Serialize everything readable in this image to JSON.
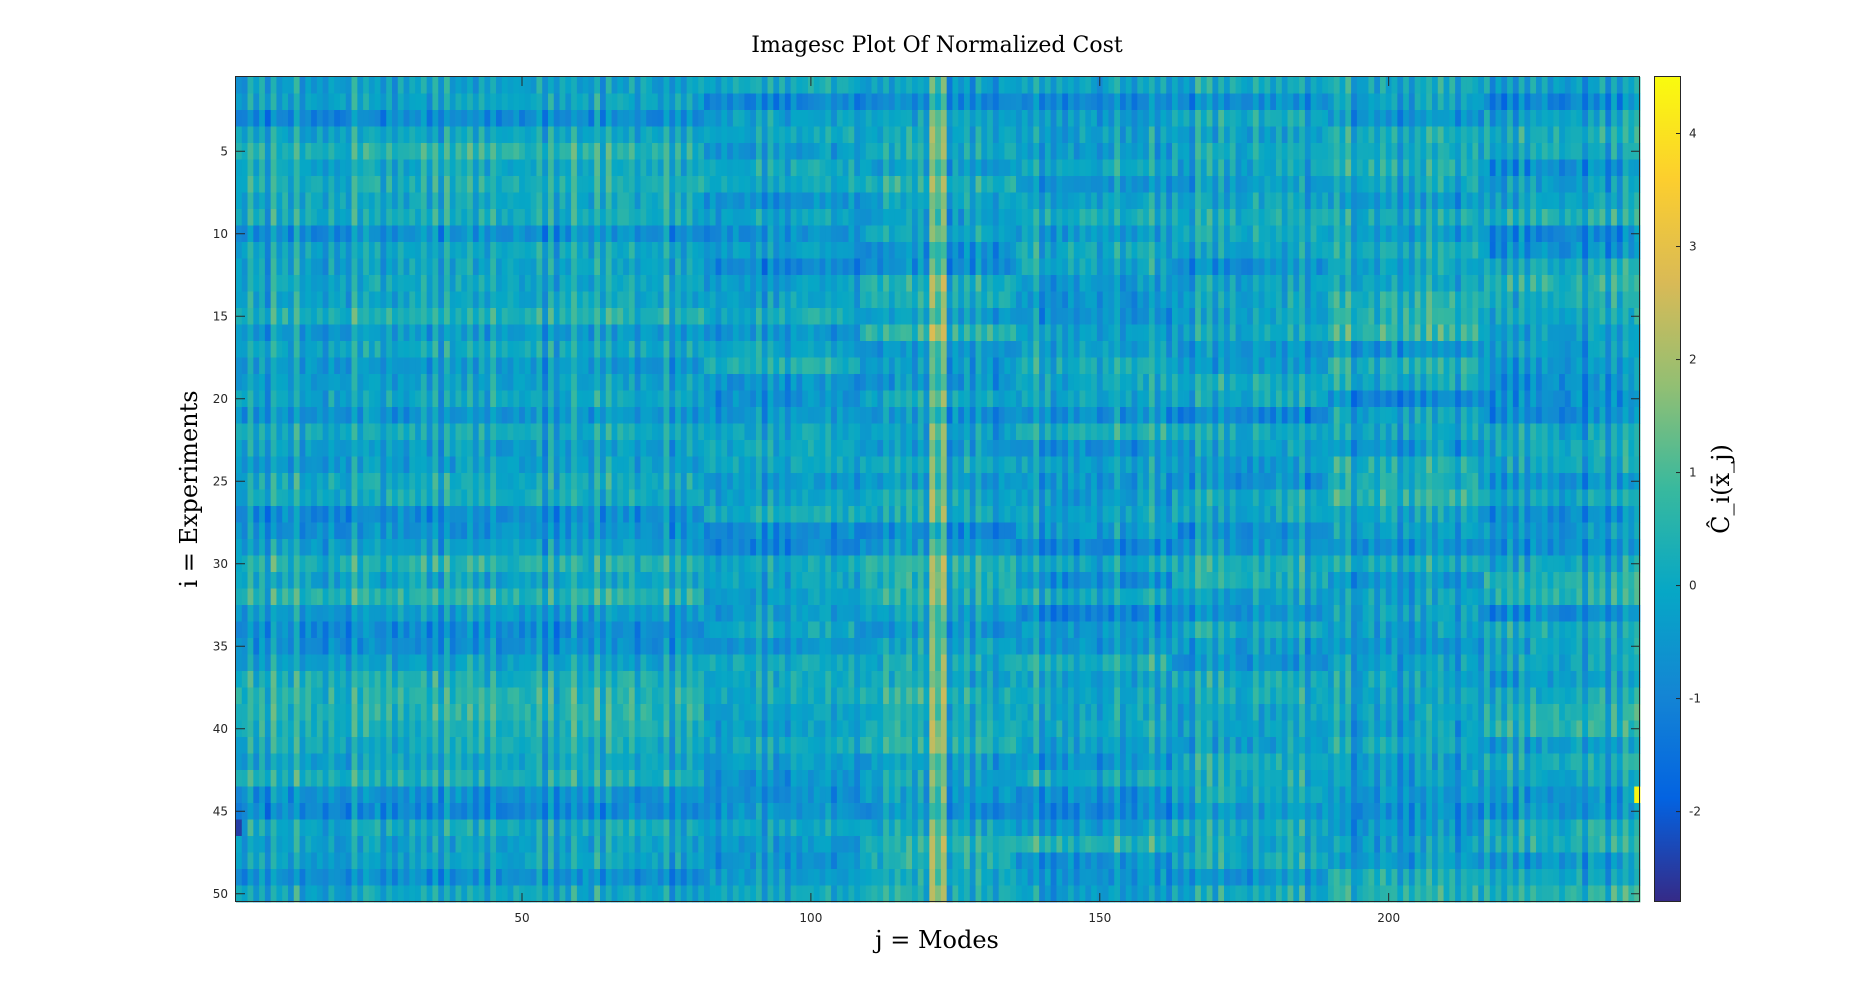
{
  "chart_data": {
    "type": "heatmap",
    "title": "Imagesc Plot Of Normalized Cost",
    "xlabel": "j = Modes",
    "ylabel": "i = Experiments",
    "colorbar_label": "Ĉ_i(x̄_j)",
    "n_rows": 50,
    "n_cols": 243,
    "xlim": [
      0.5,
      243.5
    ],
    "ylim": [
      0.5,
      50.5
    ],
    "clim": [
      -2.8,
      4.5
    ],
    "y_reversed": true,
    "x_ticks": [
      50,
      100,
      150,
      200
    ],
    "x_tick_labels": [
      "50",
      "100",
      "150",
      "200"
    ],
    "y_ticks": [
      5,
      10,
      15,
      20,
      25,
      30,
      35,
      40,
      45,
      50
    ],
    "y_tick_labels": [
      "5",
      "10",
      "15",
      "20",
      "25",
      "30",
      "35",
      "40",
      "45",
      "50"
    ],
    "colorbar_ticks": [
      -2,
      -1,
      0,
      1,
      2,
      3,
      4
    ],
    "colorbar_tick_labels": [
      "-2",
      "-1",
      "0",
      "1",
      "2",
      "3",
      "4"
    ],
    "colormap": "parula",
    "colormap_stops": [
      "#352a87",
      "#0363e1",
      "#1485d4",
      "#06a7c6",
      "#38b99e",
      "#92bf73",
      "#d9ba56",
      "#fcce2e",
      "#f9fb0e"
    ],
    "block_boundaries_x": [
      81,
      108,
      135,
      162,
      189,
      216
    ],
    "bright_columns": [
      121,
      122,
      123
    ],
    "max_cell": {
      "row": 44,
      "col": 243,
      "value": 4.4
    },
    "min_cell": {
      "row": 46,
      "col": 1,
      "value": -2.5
    },
    "values_note": ""
  }
}
